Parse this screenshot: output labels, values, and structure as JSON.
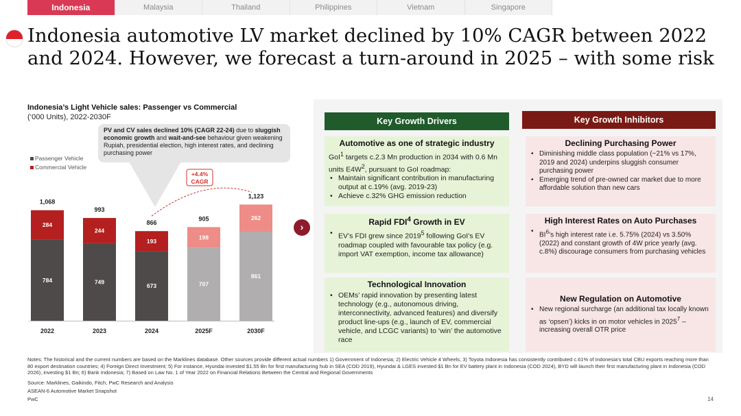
{
  "tabs": [
    {
      "label": "Indonesia",
      "active": true
    },
    {
      "label": "Malaysia",
      "active": false
    },
    {
      "label": "Thailand",
      "active": false
    },
    {
      "label": "Philippines",
      "active": false
    },
    {
      "label": "Vietnam",
      "active": false
    },
    {
      "label": "Singapore",
      "active": false
    }
  ],
  "page_title": "Indonesia automotive LV market declined by 10% CAGR between 2022 and 2024. However, we forecast a turn-around in 2025 – with some risk",
  "chart_data": {
    "type": "bar",
    "stacked": true,
    "title": "Indonesia’s Light Vehicle sales: Passenger vs Commercial",
    "subtitle": "(‘000 Units), 2022-2030F",
    "categories": [
      "2022",
      "2023",
      "2024",
      "2025F",
      "2030F"
    ],
    "series": [
      {
        "name": "Passenger Vehicle",
        "values": [
          784,
          749,
          673,
          707,
          861
        ]
      },
      {
        "name": "Commercial Vehicle",
        "values": [
          284,
          244,
          193,
          198,
          262
        ]
      }
    ],
    "totals": [
      "1,068",
      "993",
      "866",
      "905",
      "1,123"
    ],
    "colors": {
      "pv_actual": "#4e4a4a",
      "cv_actual": "#b3201f",
      "pv_forecast": "#b0aeae",
      "cv_forecast": "#ee8c88"
    },
    "cagr_label": "+4.4% CAGR",
    "ylim": [
      0,
      1200
    ]
  },
  "callout": {
    "lead": "PV and CV sales declined 10% (CAGR 22-24)",
    "mid1": " due to ",
    "bold2": "sluggish economic growth",
    "mid2": " and ",
    "bold3": "wait-and-see",
    "rest": " behaviour given weakening Rupiah, presidential election, high interest rates, and declining purchasing power"
  },
  "drivers": {
    "header": "Key Growth Drivers",
    "strategic": {
      "title": "Automotive as one of strategic industry",
      "p_a": "GoI",
      "sup_a": "1",
      "p_b": " targets c.2.3 Mn production in 2034 with 0.6 Mn units E4W",
      "sup_b": "2",
      "p_c": ", pursuant to GoI roadmap:",
      "bullets": [
        "Maintain significant contribution in manufacturing output at c.19% (avg. 2019-23)",
        "Achieve c.32% GHG emission reduction"
      ]
    },
    "fdi": {
      "title_a": "Rapid FDI",
      "title_sup": "4",
      "title_b": " Growth in EV",
      "b_a": "EV’s FDI grew since 2019",
      "b_sup": "5",
      "b_b": " following GoI’s EV roadmap coupled with favourable tax policy (e.g. import VAT exemption, income tax allowance)"
    },
    "tech": {
      "title": "Technological Innovation",
      "bullet": "OEMs’ rapid innovation by presenting latest technology (e.g., autonomous driving, interconnectivity, advanced features) and diversify product line-ups (e.g., launch of EV, commercial vehicle, and LCGC variants) to ‘win’ the automotive race"
    }
  },
  "inhibitors": {
    "header": "Key Growth Inhibitors",
    "purchasing": {
      "title": "Declining Purchasing Power",
      "bullets": [
        "Diminishing middle class population (~21% vs 17%, 2019 and 2024) underpins sluggish consumer purchasing power",
        "Emerging trend of pre-owned car market due to more affordable solution than new cars"
      ]
    },
    "rates": {
      "title": "High Interest Rates on Auto Purchases",
      "b_a": "BI",
      "b_sup": "6",
      "b_b": "’s high interest rate i.e. 5.75% (2024) vs 3.50% (2022) and constant growth of 4W price yearly (avg. c.8%) discourage consumers from purchasing vehicles"
    },
    "regulation": {
      "title": "New Regulation on Automotive",
      "b_a": "New regional surcharge (an additional tax locally known as ‘opsen’) kicks in on motor vehicles in 2025",
      "b_sup": "7",
      "b_b": " – increasing overall OTR price"
    }
  },
  "arrow_glyph": "›",
  "notes": "Notes: The historical and the current numbers are based on the Marklines database. Other sources provide different actual numbers 1) Government of Indonesia; 2) Electric Vehicle 4 Wheels; 3) Toyota Indonesia has consistently contributed c.61% of Indonesia's total CBU exports reaching more than 80 export destination countries; 4) Foreign Direct Investment; 5) For instance, Hyundai invested $1.55 Bn for first manufacturing hub in SEA (COD 2019), Hyundai & LGES invested $1 Bn for EV battery plant in Indonesia (COD 2024), BYD will launch their first manufacturing plant in Indonesia (COD 2026), investing $1 Bn; 6) Bank Indonesia; 7) Based on Law No. 1 of Year 2022 on Financial Relations Between the Central and Regional Governments",
  "source": "Source: Marklines, Gaikindo, Fitch, PwC Research and Analysis",
  "doc_title": "ASEAN-6 Automotive Market Snapshot",
  "brand": "PwC",
  "page_number": "14"
}
